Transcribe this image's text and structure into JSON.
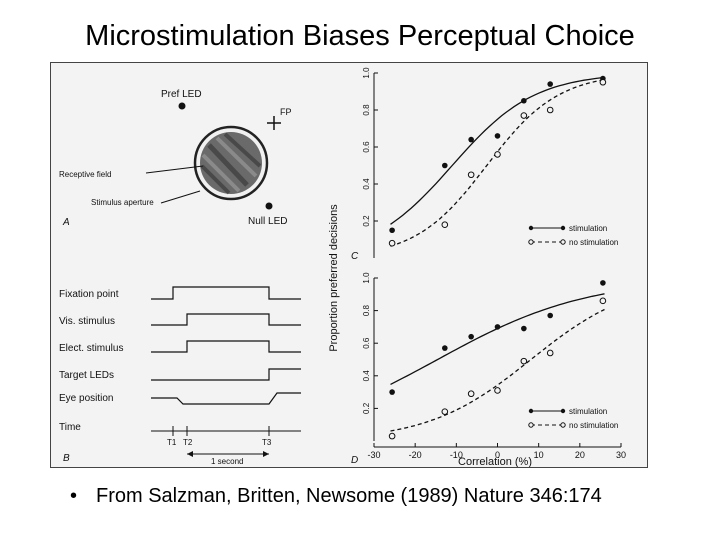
{
  "slide": {
    "title": "Microstimulation Biases Perceptual Choice",
    "citation": "From Salzman, Britten, Newsome (1989) Nature 346:174"
  },
  "panel_a": {
    "letter": "A",
    "pref_led": "Pref LED",
    "fp": "FP",
    "receptive_field": "Receptive field",
    "stimulus_aperture": "Stimulus aperture",
    "null_led": "Null LED"
  },
  "panel_b": {
    "letter": "B",
    "rows": [
      "Fixation point",
      "Vis.  stimulus",
      "Elect.  stimulus",
      "Target LEDs",
      "Eye position",
      "Time"
    ],
    "time_marks": [
      "T1",
      "T2",
      "T3"
    ],
    "duration": "1 second"
  },
  "shared_axes": {
    "ylabel": "Proportion preferred decisions",
    "xlabel": "Correlation (%)"
  },
  "legend": {
    "stimulation": "stimulation",
    "no_stimulation": "no stimulation"
  },
  "chart_data": [
    {
      "type": "scatter",
      "panel": "C",
      "title": "",
      "xlim": [
        -30,
        30
      ],
      "ylim": [
        0,
        1.0
      ],
      "yticks": [
        "0.2",
        "0.4",
        "0.6",
        "0.8",
        "1.0"
      ],
      "series": [
        {
          "name": "stimulation",
          "x": [
            -25.6,
            -12.8,
            -6.4,
            0,
            6.4,
            12.8,
            25.6
          ],
          "y": [
            0.15,
            0.5,
            0.64,
            0.66,
            0.85,
            0.94,
            0.97
          ],
          "marker": "filled"
        },
        {
          "name": "no stimulation",
          "x": [
            -25.6,
            -12.8,
            -6.4,
            0,
            6.4,
            12.8,
            25.6
          ],
          "y": [
            0.08,
            0.18,
            0.45,
            0.56,
            0.77,
            0.8,
            0.95
          ],
          "marker": "open"
        }
      ]
    },
    {
      "type": "scatter",
      "panel": "D",
      "title": "",
      "xlim": [
        -30,
        30
      ],
      "ylim": [
        0,
        1.0
      ],
      "yticks": [
        "0.2",
        "0.4",
        "0.6",
        "0.8",
        "1.0"
      ],
      "xticks": [
        "-30",
        "-20",
        "-10",
        "0",
        "10",
        "20",
        "30"
      ],
      "series": [
        {
          "name": "stimulation",
          "x": [
            -25.6,
            -12.8,
            -6.4,
            0,
            6.4,
            12.8,
            25.6
          ],
          "y": [
            0.3,
            0.57,
            0.64,
            0.7,
            0.69,
            0.77,
            0.97
          ],
          "marker": "filled"
        },
        {
          "name": "no stimulation",
          "x": [
            -25.6,
            -12.8,
            -6.4,
            0,
            6.4,
            12.8,
            25.6
          ],
          "y": [
            0.03,
            0.18,
            0.29,
            0.31,
            0.49,
            0.54,
            0.86
          ],
          "marker": "open"
        }
      ]
    }
  ]
}
